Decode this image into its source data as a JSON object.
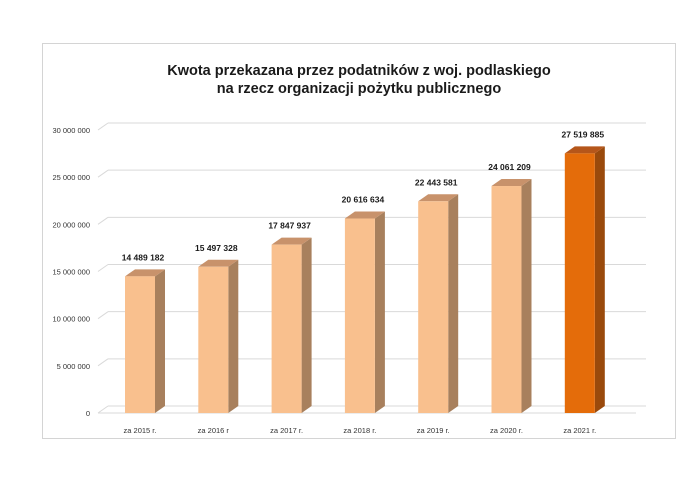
{
  "chart_data": {
    "type": "bar",
    "title": [
      "Kwota przekazana przez podatników z woj. podlaskiego",
      "na rzecz organizacji pożytku publicznego"
    ],
    "categories": [
      "za 2015 r.",
      "za 2016 r",
      "za 2017 r.",
      "za 2018 r.",
      "za 2019 r.",
      "za 2020 r.",
      "za 2021 r."
    ],
    "values": [
      14489182,
      15497328,
      17847937,
      20616634,
      22443581,
      24061209,
      27519885
    ],
    "value_labels": [
      "14 489 182",
      "15 497 328",
      "17 847 937",
      "20 616 634",
      "22 443 581",
      "24 061 209",
      "27 519 885"
    ],
    "yticks": [
      0,
      5000000,
      10000000,
      15000000,
      20000000,
      25000000,
      30000000
    ],
    "ytick_labels": [
      "0",
      "5 000 000",
      "10 000 000",
      "15 000 000",
      "20 000 000",
      "25 000 000",
      "30 000 000"
    ],
    "ylim": [
      0,
      30000000
    ],
    "grid": true,
    "style": "3d-column",
    "colors": {
      "default_front": "#f9c08e",
      "default_side": "#a8805d",
      "default_top": "#c8926b",
      "highlight_front": "#e46c0a",
      "highlight_side": "#9a4a0c",
      "highlight_top": "#b5561a",
      "highlight_index": 6
    }
  }
}
